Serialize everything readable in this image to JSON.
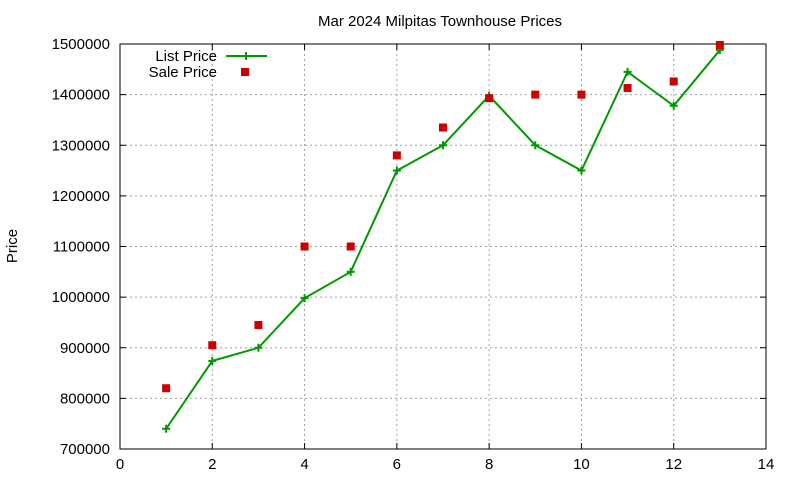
{
  "chart_data": {
    "type": "line",
    "title": "Mar 2024 Milpitas Townhouse Prices",
    "xlabel": "",
    "ylabel": "Price",
    "xlim": [
      0,
      14
    ],
    "ylim": [
      700000,
      1500000
    ],
    "xticks": [
      0,
      2,
      4,
      6,
      8,
      10,
      12,
      14
    ],
    "yticks": [
      700000,
      800000,
      900000,
      1000000,
      1100000,
      1200000,
      1300000,
      1400000,
      1500000
    ],
    "grid": true,
    "legend_position": "top-left",
    "series": [
      {
        "name": "List Price",
        "style": "line-plus",
        "color": "#009900",
        "x": [
          1,
          2,
          3,
          4,
          5,
          6,
          7,
          8,
          9,
          10,
          11,
          12,
          13
        ],
        "y": [
          740000,
          874000,
          900000,
          998000,
          1050000,
          1250000,
          1300000,
          1398000,
          1300000,
          1250000,
          1445000,
          1378000,
          1488000
        ]
      },
      {
        "name": "Sale Price",
        "style": "square-points",
        "color": "#cc0000",
        "x": [
          1,
          2,
          3,
          4,
          5,
          6,
          7,
          8,
          9,
          10,
          11,
          12,
          13
        ],
        "y": [
          820000,
          905000,
          945000,
          1100000,
          1100000,
          1280000,
          1335000,
          1393000,
          1400000,
          1400000,
          1413000,
          1426000,
          1498000
        ]
      }
    ]
  }
}
